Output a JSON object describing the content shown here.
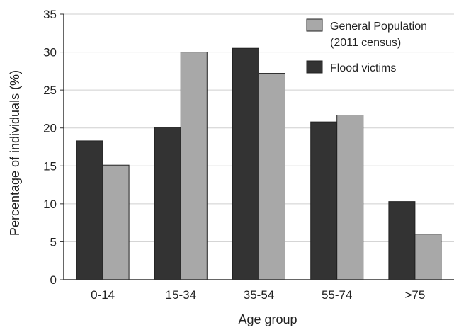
{
  "chart_data": {
    "type": "bar",
    "xlabel": "Age group",
    "ylabel": "Percentage of individuals (%)",
    "categories": [
      "0-14",
      "15-34",
      "35-54",
      "55-74",
      ">75"
    ],
    "ylim": [
      0,
      35
    ],
    "yticks": [
      0,
      5,
      10,
      15,
      20,
      25,
      30,
      35
    ],
    "grid": "horizontal",
    "legend_placement": "top-right",
    "series": [
      {
        "name": "Flood victims",
        "color": "#333333",
        "values": [
          18.3,
          20.1,
          30.5,
          20.8,
          10.3
        ]
      },
      {
        "name_lines": [
          "General Population",
          "(2011 census)"
        ],
        "color": "#a8a8a8",
        "values": [
          15.1,
          30.0,
          27.2,
          21.7,
          6.0
        ]
      }
    ],
    "legend": [
      {
        "label_lines": [
          "General Population",
          "(2011 census)"
        ],
        "color": "#a8a8a8"
      },
      {
        "label_lines": [
          "Flood victims"
        ],
        "color": "#333333"
      }
    ]
  }
}
